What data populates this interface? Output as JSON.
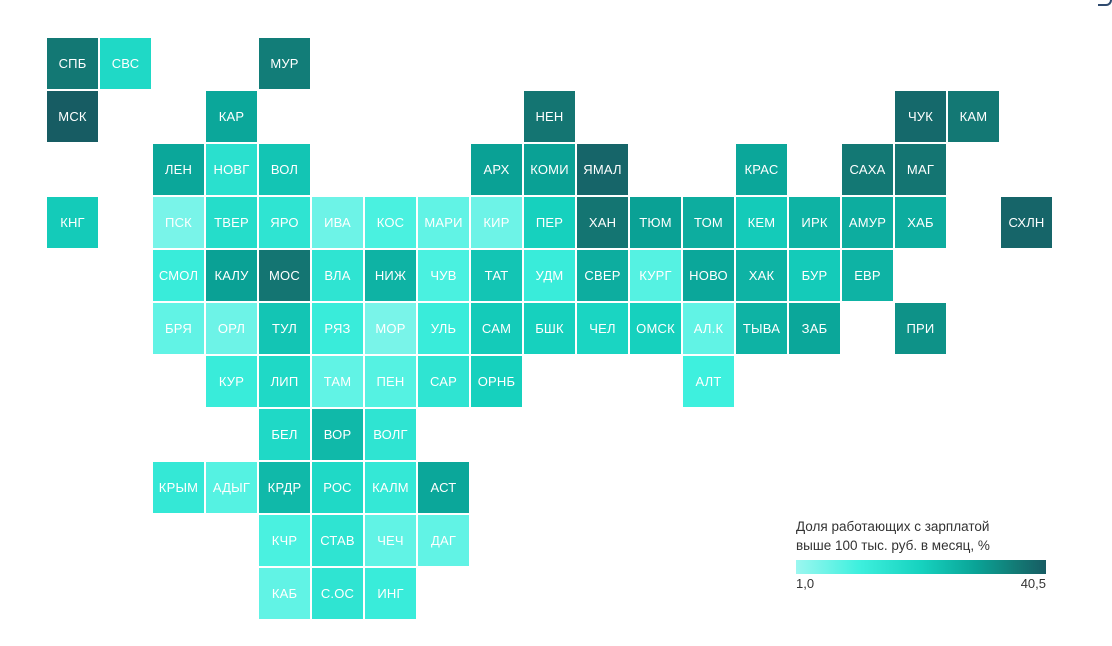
{
  "legend": {
    "title_line1": "Доля работающих с зарплатой",
    "title_line2": "выше 100 тыс. руб. в месяц, %",
    "min_label": "1,0",
    "max_label": "40,5",
    "min_value": 1.0,
    "max_value": 40.5,
    "colors": [
      "#9cf7f0",
      "#3ff0de",
      "#16d2bf",
      "#0aa396",
      "#137a75",
      "#175c63"
    ]
  },
  "regions": [
    {
      "label": "СПБ",
      "col": 0,
      "row": 0,
      "value": 33
    },
    {
      "label": "СВС",
      "col": 1,
      "row": 0,
      "value": 15
    },
    {
      "label": "МУР",
      "col": 4,
      "row": 0,
      "value": 32
    },
    {
      "label": "МСК",
      "col": 0,
      "row": 1,
      "value": 40.5
    },
    {
      "label": "КАР",
      "col": 3,
      "row": 1,
      "value": 24
    },
    {
      "label": "НЕН",
      "col": 9,
      "row": 1,
      "value": 34
    },
    {
      "label": "ЧУК",
      "col": 16,
      "row": 1,
      "value": 37
    },
    {
      "label": "КАМ",
      "col": 17,
      "row": 1,
      "value": 33
    },
    {
      "label": "ЛЕН",
      "col": 2,
      "row": 2,
      "value": 24
    },
    {
      "label": "НОВГ",
      "col": 3,
      "row": 2,
      "value": 13
    },
    {
      "label": "ВОЛ",
      "col": 4,
      "row": 2,
      "value": 19
    },
    {
      "label": "АРХ",
      "col": 8,
      "row": 2,
      "value": 25
    },
    {
      "label": "КОМИ",
      "col": 9,
      "row": 2,
      "value": 25
    },
    {
      "label": "ЯМАЛ",
      "col": 10,
      "row": 2,
      "value": 38
    },
    {
      "label": "КРАС",
      "col": 13,
      "row": 2,
      "value": 24
    },
    {
      "label": "САХА",
      "col": 15,
      "row": 2,
      "value": 33
    },
    {
      "label": "МАГ",
      "col": 16,
      "row": 2,
      "value": 34
    },
    {
      "label": "КНГ",
      "col": 0,
      "row": 3,
      "value": 18
    },
    {
      "label": "ПСК",
      "col": 2,
      "row": 3,
      "value": 4
    },
    {
      "label": "ТВЕР",
      "col": 3,
      "row": 3,
      "value": 14
    },
    {
      "label": "ЯРО",
      "col": 4,
      "row": 3,
      "value": 12
    },
    {
      "label": "ИВА",
      "col": 5,
      "row": 3,
      "value": 5
    },
    {
      "label": "КОС",
      "col": 6,
      "row": 3,
      "value": 8
    },
    {
      "label": "МАРИ",
      "col": 7,
      "row": 3,
      "value": 6
    },
    {
      "label": "КИР",
      "col": 8,
      "row": 3,
      "value": 5
    },
    {
      "label": "ПЕР",
      "col": 9,
      "row": 3,
      "value": 17
    },
    {
      "label": "ХАН",
      "col": 10,
      "row": 3,
      "value": 34
    },
    {
      "label": "ТЮМ",
      "col": 11,
      "row": 3,
      "value": 25
    },
    {
      "label": "ТОМ",
      "col": 12,
      "row": 3,
      "value": 23
    },
    {
      "label": "КЕМ",
      "col": 13,
      "row": 3,
      "value": 18
    },
    {
      "label": "ИРК",
      "col": 14,
      "row": 3,
      "value": 22
    },
    {
      "label": "АМУР",
      "col": 15,
      "row": 3,
      "value": 23
    },
    {
      "label": "ХАБ",
      "col": 16,
      "row": 3,
      "value": 23
    },
    {
      "label": "СХЛН",
      "col": 18,
      "row": 3,
      "value": 38
    },
    {
      "label": "СМОЛ",
      "col": 2,
      "row": 4,
      "value": 10
    },
    {
      "label": "КАЛУ",
      "col": 3,
      "row": 4,
      "value": 25
    },
    {
      "label": "МОС",
      "col": 4,
      "row": 4,
      "value": 34
    },
    {
      "label": "ВЛА",
      "col": 5,
      "row": 4,
      "value": 12
    },
    {
      "label": "НИЖ",
      "col": 6,
      "row": 4,
      "value": 22
    },
    {
      "label": "ЧУВ",
      "col": 7,
      "row": 4,
      "value": 8
    },
    {
      "label": "ТАТ",
      "col": 8,
      "row": 4,
      "value": 19
    },
    {
      "label": "УДМ",
      "col": 9,
      "row": 4,
      "value": 10
    },
    {
      "label": "СВЕР",
      "col": 10,
      "row": 4,
      "value": 23
    },
    {
      "label": "КУРГ",
      "col": 11,
      "row": 4,
      "value": 7
    },
    {
      "label": "НОВО",
      "col": 12,
      "row": 4,
      "value": 24
    },
    {
      "label": "ХАК",
      "col": 13,
      "row": 4,
      "value": 22
    },
    {
      "label": "БУР",
      "col": 14,
      "row": 4,
      "value": 18
    },
    {
      "label": "ЕВР",
      "col": 15,
      "row": 4,
      "value": 22
    },
    {
      "label": "БРЯ",
      "col": 2,
      "row": 5,
      "value": 6
    },
    {
      "label": "ОРЛ",
      "col": 3,
      "row": 5,
      "value": 5
    },
    {
      "label": "ТУЛ",
      "col": 4,
      "row": 5,
      "value": 19
    },
    {
      "label": "РЯЗ",
      "col": 5,
      "row": 5,
      "value": 10
    },
    {
      "label": "МОР",
      "col": 6,
      "row": 5,
      "value": 4
    },
    {
      "label": "УЛЬ",
      "col": 7,
      "row": 5,
      "value": 10
    },
    {
      "label": "САМ",
      "col": 8,
      "row": 5,
      "value": 18
    },
    {
      "label": "БШК",
      "col": 9,
      "row": 5,
      "value": 17
    },
    {
      "label": "ЧЕЛ",
      "col": 10,
      "row": 5,
      "value": 16
    },
    {
      "label": "ОМСК",
      "col": 11,
      "row": 5,
      "value": 17
    },
    {
      "label": "АЛ.К",
      "col": 12,
      "row": 5,
      "value": 6
    },
    {
      "label": "ТЫВА",
      "col": 13,
      "row": 5,
      "value": 22
    },
    {
      "label": "ЗАБ",
      "col": 14,
      "row": 5,
      "value": 24
    },
    {
      "label": "ПРИ",
      "col": 16,
      "row": 5,
      "value": 28
    },
    {
      "label": "КУР",
      "col": 3,
      "row": 6,
      "value": 10
    },
    {
      "label": "ЛИП",
      "col": 4,
      "row": 6,
      "value": 15
    },
    {
      "label": "ТАМ",
      "col": 5,
      "row": 6,
      "value": 6
    },
    {
      "label": "ПЕН",
      "col": 6,
      "row": 6,
      "value": 7
    },
    {
      "label": "САР",
      "col": 7,
      "row": 6,
      "value": 12
    },
    {
      "label": "ОРНБ",
      "col": 8,
      "row": 6,
      "value": 17
    },
    {
      "label": "АЛТ",
      "col": 12,
      "row": 6,
      "value": 9
    },
    {
      "label": "БЕЛ",
      "col": 4,
      "row": 7,
      "value": 15
    },
    {
      "label": "ВОР",
      "col": 5,
      "row": 7,
      "value": 21
    },
    {
      "label": "ВОЛГ",
      "col": 6,
      "row": 7,
      "value": 12
    },
    {
      "label": "КРЫМ",
      "col": 2,
      "row": 8,
      "value": 11
    },
    {
      "label": "АДЫГ",
      "col": 3,
      "row": 8,
      "value": 7
    },
    {
      "label": "КРДР",
      "col": 4,
      "row": 8,
      "value": 21
    },
    {
      "label": "РОС",
      "col": 5,
      "row": 8,
      "value": 15
    },
    {
      "label": "КАЛМ",
      "col": 6,
      "row": 8,
      "value": 11
    },
    {
      "label": "АСТ",
      "col": 7,
      "row": 8,
      "value": 24
    },
    {
      "label": "КЧР",
      "col": 4,
      "row": 9,
      "value": 8
    },
    {
      "label": "СТАВ",
      "col": 5,
      "row": 9,
      "value": 12
    },
    {
      "label": "ЧЕЧ",
      "col": 6,
      "row": 9,
      "value": 6
    },
    {
      "label": "ДАГ",
      "col": 7,
      "row": 9,
      "value": 6
    },
    {
      "label": "КАБ",
      "col": 4,
      "row": 10,
      "value": 6
    },
    {
      "label": "С.ОС",
      "col": 5,
      "row": 10,
      "value": 12
    },
    {
      "label": "ИНГ",
      "col": 6,
      "row": 10,
      "value": 10
    }
  ]
}
